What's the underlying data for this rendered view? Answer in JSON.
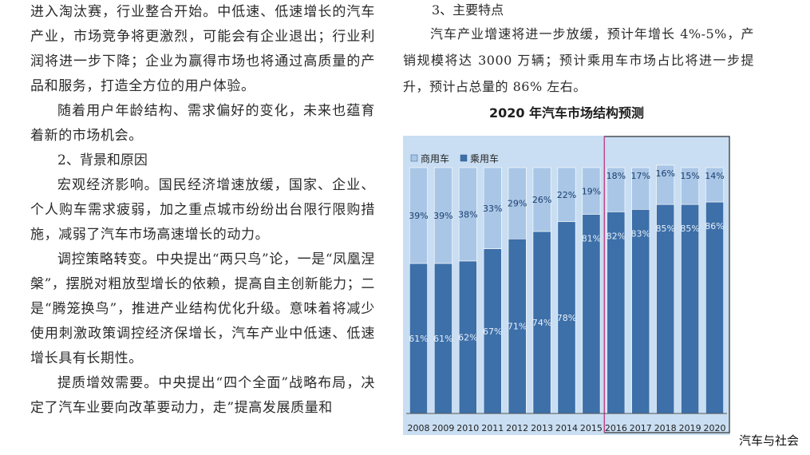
{
  "left_column": {
    "p1": "进入淘汰赛，行业整合开始。中低速、低速增长的汽车产业，市场竞争将更激烈，可能会有企业退出；行业利润将进一步下降；企业为赢得市场也将通过高质量的产品和服务，打造全方位的用户体验。",
    "p2": "随着用户年龄结构、需求偏好的变化，未来也蕴育着新的市场机会。",
    "h2": "2、背景和原因",
    "p3": "宏观经济影响。国民经济增速放缓，国家、企业、个人购车需求疲弱，加之重点城市纷纷出台限行限购措施，减弱了汽车市场高速增长的动力。",
    "p4": "调控策略转变。中央提出“两只鸟”论，一是“凤凰涅槃”，摆脱对粗放型增长的依赖，提高自主创新能力；二是“腾笼换鸟”，推进产业结构优化升级。意味着将减少使用刺激政策调控经济保增长，汽车产业中低速、低速增长具有长期性。",
    "p5": "提质增效需要。中央提出“四个全面”战略布局，决定了汽车业要向改革要动力，走”提高发展质量和"
  },
  "right_column": {
    "h3": "3、主要特点",
    "p1": "汽车产业增速将进一步放缓，预计年增长 4%-5%，产销规模将达 3000 万辆；预计乘用车市场占比将进一步提升，预计占总量的 86% 左右。"
  },
  "chart_data": {
    "type": "bar",
    "stacked": true,
    "title": "2020 年汽车市场结构预测",
    "categories": [
      "2008",
      "2009",
      "2010",
      "2011",
      "2012",
      "2013",
      "2014",
      "2015",
      "2016",
      "2017",
      "2018",
      "2019",
      "2020"
    ],
    "series": [
      {
        "name": "乘用车",
        "values": [
          61,
          61,
          62,
          67,
          71,
          74,
          78,
          81,
          82,
          83,
          85,
          85,
          86
        ],
        "labels": [
          "61%",
          "61%",
          "62%",
          "67%",
          "71%",
          "74%",
          "78%",
          "81%",
          "82%",
          "83%",
          "85%",
          "85%",
          "86%"
        ],
        "color": "#3d6fa8"
      },
      {
        "name": "商用车",
        "values": [
          39,
          39,
          38,
          33,
          29,
          26,
          22,
          19,
          18,
          17,
          16,
          15,
          14
        ],
        "labels": [
          "39%",
          "39%",
          "38%",
          "33%",
          "29%",
          "26%",
          "22%",
          "19%",
          "18%",
          "17%",
          "16%",
          "15%",
          "14%"
        ],
        "color": "#a9c6e6"
      }
    ],
    "legend_position": "top-left",
    "ylim": [
      0,
      100
    ],
    "highlight_range": [
      "2016",
      "2020"
    ],
    "background": "#c9def2"
  },
  "footer": {
    "text": "汽车与社会"
  }
}
